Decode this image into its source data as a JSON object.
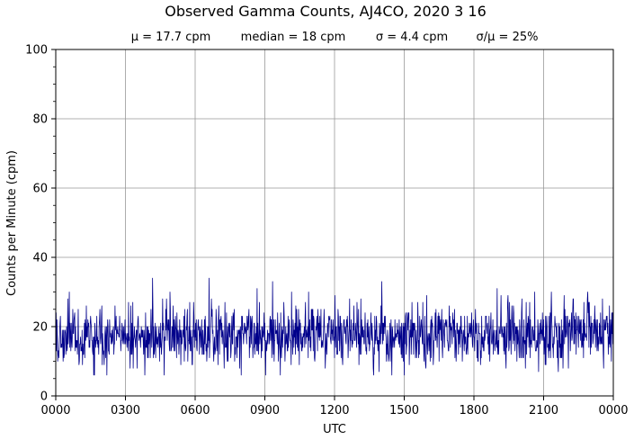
{
  "chart_data": {
    "type": "line",
    "title": "Observed Gamma Counts, AJ4CO, 2020 3 16",
    "subtitle": {
      "mean": "μ = 17.7 cpm",
      "median": "median = 18 cpm",
      "sigma": "σ = 4.4 cpm",
      "ratio": "σ/μ = 25%"
    },
    "xlabel": "UTC",
    "ylabel": "Counts per Minute (cpm)",
    "xlim_minutes": [
      0,
      1440
    ],
    "ylim": [
      0,
      100
    ],
    "x_ticks": [
      {
        "minute": 0,
        "label": "0000"
      },
      {
        "minute": 180,
        "label": "0300"
      },
      {
        "minute": 360,
        "label": "0600"
      },
      {
        "minute": 540,
        "label": "0900"
      },
      {
        "minute": 720,
        "label": "1200"
      },
      {
        "minute": 900,
        "label": "1500"
      },
      {
        "minute": 1080,
        "label": "1800"
      },
      {
        "minute": 1260,
        "label": "2100"
      },
      {
        "minute": 1440,
        "label": "0000"
      }
    ],
    "y_ticks": [
      0,
      20,
      40,
      60,
      80,
      100
    ],
    "y_tick_labels": [
      "0",
      "20",
      "40",
      "60",
      "80",
      "100"
    ],
    "y_minor_step": 5,
    "grid": true,
    "series": [
      {
        "color": "#00008b",
        "sample_interval_minutes": 1,
        "mean": 17.7,
        "sd": 4.4,
        "approx_range": [
          6,
          34
        ],
        "notable_points": [
          {
            "minute": 5,
            "value": 10
          },
          {
            "minute": 100,
            "value": 6
          },
          {
            "minute": 250,
            "value": 34
          },
          {
            "minute": 560,
            "value": 33
          },
          {
            "minute": 820,
            "value": 8
          },
          {
            "minute": 900,
            "value": 6
          },
          {
            "minute": 1140,
            "value": 31
          },
          {
            "minute": 1430,
            "value": 26
          }
        ]
      }
    ]
  }
}
